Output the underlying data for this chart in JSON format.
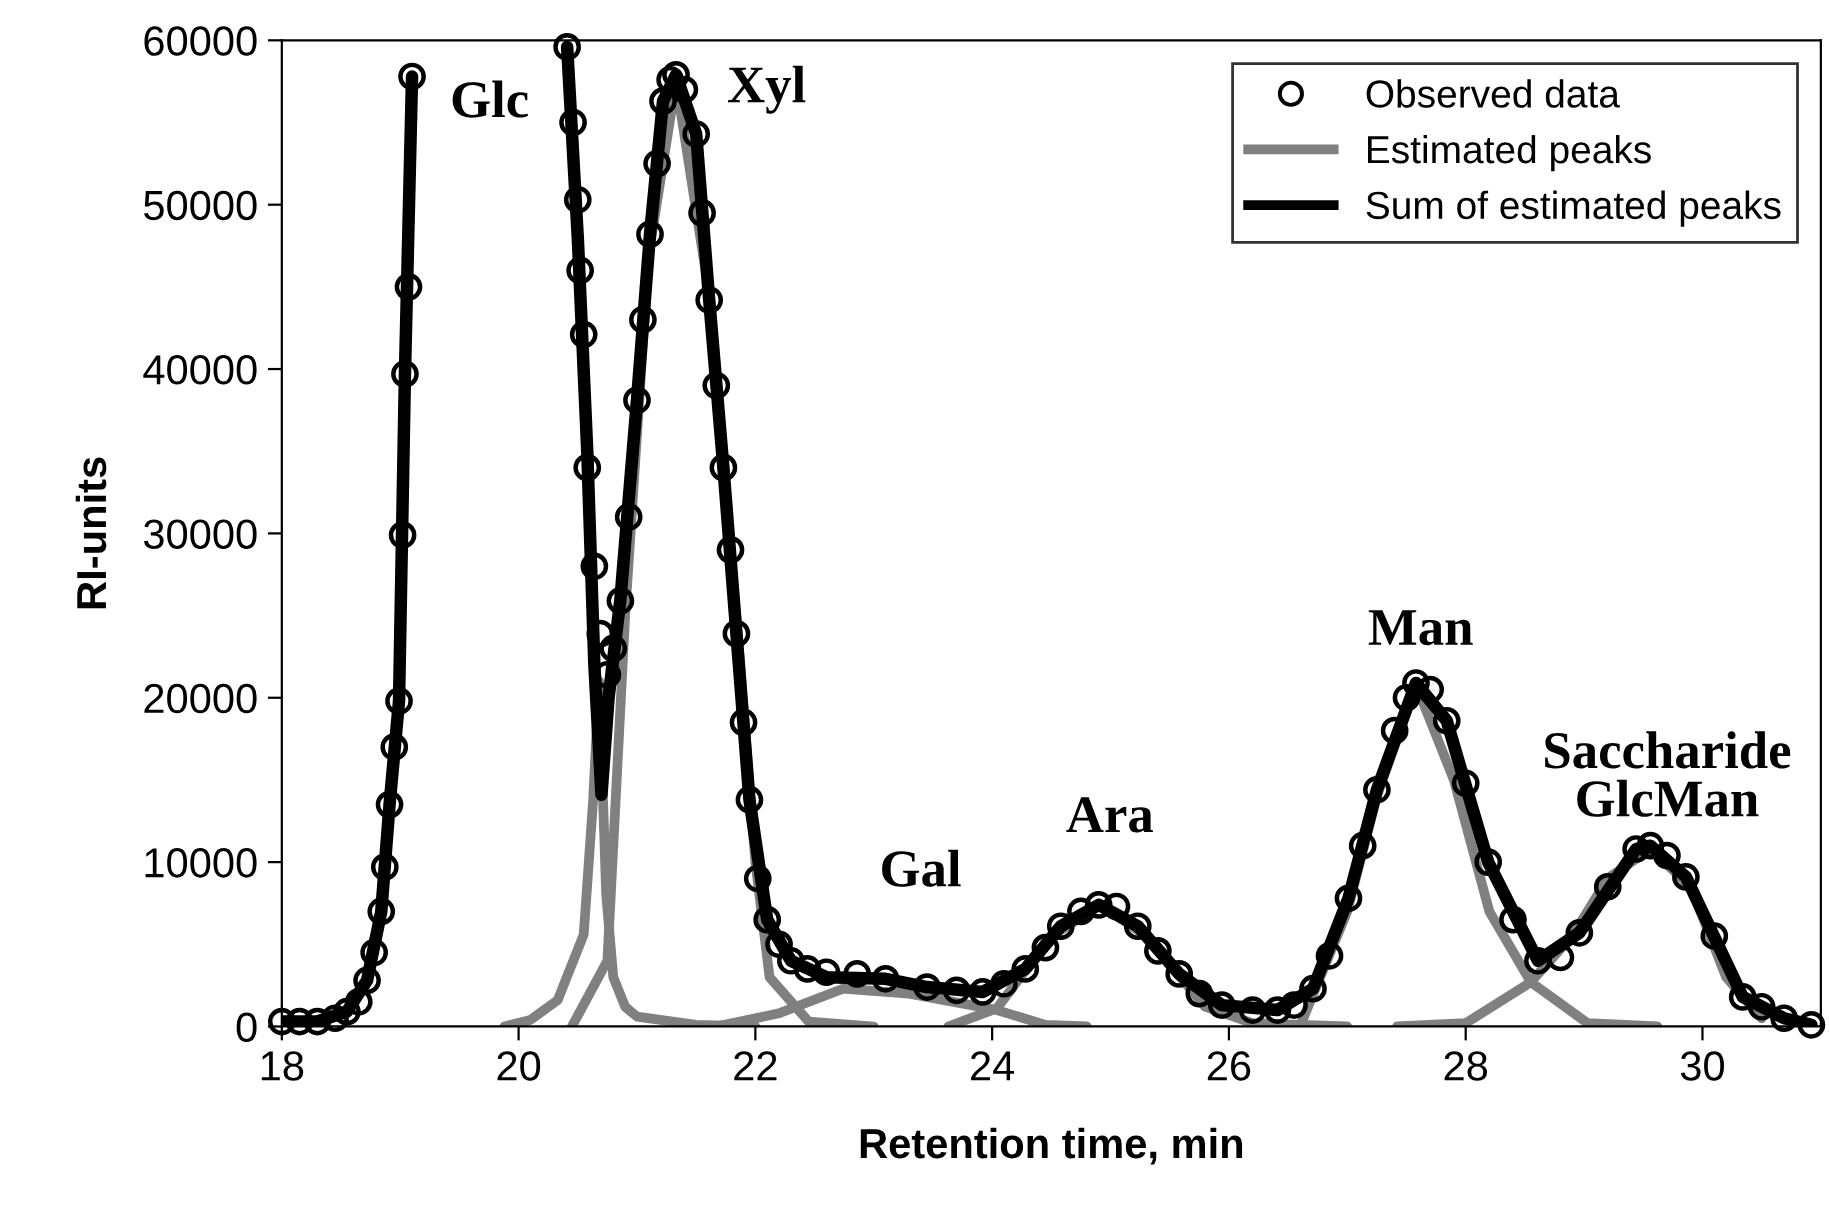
{
  "chart_data": {
    "type": "line",
    "xlabel": "Retention time, min",
    "ylabel": "RI-units",
    "xlim": [
      18,
      31
    ],
    "xticks": [
      18,
      20,
      22,
      24,
      26,
      28,
      30
    ],
    "ylim": [
      0,
      60000
    ],
    "yticks": [
      0,
      10000,
      20000,
      30000,
      40000,
      50000,
      60000
    ],
    "grid": false,
    "legend": "top right",
    "series": [
      {
        "name": "Observed data",
        "type": "scatter",
        "marker": "circle",
        "color": "#000000",
        "x": [
          18.0,
          18.15,
          18.3,
          18.45,
          18.55,
          18.65,
          18.72,
          18.78,
          18.84,
          18.87,
          18.91,
          18.95,
          18.99,
          19.02,
          19.04,
          19.07,
          19.1,
          20.41,
          20.46,
          20.5,
          20.52,
          20.55,
          20.58,
          20.64,
          20.69,
          20.75,
          20.8,
          20.86,
          20.93,
          21.0,
          21.05,
          21.11,
          21.17,
          21.22,
          21.28,
          21.33,
          21.4,
          21.5,
          21.55,
          21.61,
          21.67,
          21.73,
          21.79,
          21.84,
          21.9,
          21.95,
          22.02,
          22.1,
          22.2,
          22.3,
          22.44,
          22.6,
          22.86,
          23.1,
          23.45,
          23.7,
          23.92,
          24.1,
          24.28,
          24.45,
          24.58,
          24.75,
          24.9,
          25.05,
          25.23,
          25.4,
          25.58,
          25.75,
          25.94,
          26.2,
          26.41,
          26.55,
          26.71,
          26.85,
          27.01,
          27.13,
          27.25,
          27.4,
          27.5,
          27.58,
          27.7,
          27.84,
          28.0,
          28.19,
          28.4,
          28.61,
          28.8,
          28.96,
          29.2,
          29.44,
          29.56,
          29.7,
          29.86,
          30.1,
          30.34,
          30.5,
          30.69,
          30.92
        ],
        "values": [
          300,
          300,
          300,
          500,
          900,
          1500,
          2800,
          4500,
          7000,
          9700,
          13500,
          17000,
          19800,
          29900,
          39700,
          45000,
          57800,
          59600,
          55000,
          50300,
          46000,
          42100,
          34000,
          28000,
          23900,
          21400,
          23000,
          25900,
          31000,
          38100,
          43000,
          48200,
          52500,
          56300,
          57600,
          57900,
          57000,
          54300,
          49500,
          44200,
          39000,
          34000,
          29000,
          23900,
          18500,
          13800,
          9000,
          6500,
          5000,
          4000,
          3500,
          3300,
          3200,
          2900,
          2400,
          2200,
          2100,
          2600,
          3500,
          4800,
          6100,
          7000,
          7400,
          7300,
          6100,
          4600,
          3200,
          2000,
          1300,
          1000,
          1000,
          1300,
          2300,
          4300,
          7800,
          11000,
          14400,
          18000,
          20000,
          20900,
          20500,
          18600,
          14800,
          10000,
          6500,
          4000,
          4200,
          5700,
          8500,
          10800,
          11000,
          10400,
          9100,
          5500,
          1800,
          1200,
          500,
          100
        ]
      },
      {
        "name": "Estimated peaks",
        "color": "#808080",
        "x": [
          19.88,
          20.1,
          20.33,
          20.55,
          20.63,
          20.68,
          20.74,
          20.8,
          20.9,
          21.0,
          21.5,
          22.0
        ],
        "values": [
          0,
          400,
          1600,
          5600,
          13800,
          21000,
          8000,
          3000,
          1200,
          600,
          100,
          0
        ]
      },
      {
        "color": "#808080",
        "x": [
          20.45,
          20.75,
          20.9,
          21.1,
          21.33,
          21.6,
          21.85,
          22.0,
          22.12,
          22.45,
          23.0
        ],
        "values": [
          0,
          4000,
          25000,
          47000,
          57500,
          45000,
          24000,
          10000,
          3000,
          300,
          0
        ]
      },
      {
        "color": "#808080",
        "x": [
          21.67,
          22.2,
          22.74,
          23.3,
          24.04,
          24.45,
          24.8
        ],
        "values": [
          0,
          800,
          2300,
          2000,
          1000,
          100,
          0
        ]
      },
      {
        "color": "#808080",
        "x": [
          23.63,
          24.04,
          24.5,
          24.92,
          25.3,
          25.8,
          26.2,
          27.0
        ],
        "values": [
          0,
          1100,
          5500,
          7400,
          5500,
          1200,
          200,
          0
        ]
      },
      {
        "color": "#808080",
        "x": [
          26.6,
          27.0,
          27.25,
          27.58,
          27.9,
          28.2,
          28.55,
          29.03,
          29.62
        ],
        "values": [
          0,
          7000,
          14000,
          20800,
          15000,
          7000,
          2700,
          200,
          0
        ]
      },
      {
        "color": "#808080",
        "x": [
          27.42,
          28.0,
          28.55,
          28.9,
          29.2,
          29.56,
          29.9,
          30.2,
          30.5
        ],
        "values": [
          0,
          200,
          2700,
          5500,
          9000,
          10800,
          8500,
          3000,
          500
        ]
      },
      {
        "name": "Sum of estimated peaks",
        "color": "#000000",
        "x": [
          18.0,
          18.3,
          18.55,
          18.72,
          18.84,
          18.91,
          18.99,
          19.04,
          19.1,
          19.12,
          20.4,
          20.41,
          20.5,
          20.58,
          20.64,
          20.7,
          20.76,
          20.86,
          21.0,
          21.11,
          21.22,
          21.33,
          21.5,
          21.61,
          21.73,
          21.84,
          21.95,
          22.1,
          22.3,
          22.6,
          23.1,
          23.45,
          23.92,
          24.28,
          24.58,
          24.9,
          25.23,
          25.58,
          25.94,
          26.41,
          26.71,
          27.01,
          27.25,
          27.58,
          27.84,
          28.19,
          28.61,
          28.96,
          29.44,
          29.56,
          29.86,
          30.34,
          30.69,
          30.92
        ],
        "values": [
          300,
          300,
          900,
          2800,
          7000,
          13500,
          19800,
          39700,
          57800,
          null,
          null,
          59600,
          48000,
          35000,
          22000,
          14100,
          20000,
          26000,
          38100,
          48200,
          56300,
          57900,
          54300,
          44200,
          34000,
          23900,
          13800,
          6500,
          4000,
          3000,
          2900,
          2400,
          2100,
          3500,
          6100,
          7400,
          6100,
          3200,
          1300,
          1000,
          2300,
          7800,
          14400,
          20900,
          18600,
          10000,
          4000,
          5700,
          10800,
          11000,
          9100,
          1800,
          500,
          100
        ]
      }
    ],
    "annotations": [
      "Glc",
      "Xyl",
      "Gal",
      "Ara",
      "Man",
      "Saccharide",
      "GlcMan"
    ]
  }
}
